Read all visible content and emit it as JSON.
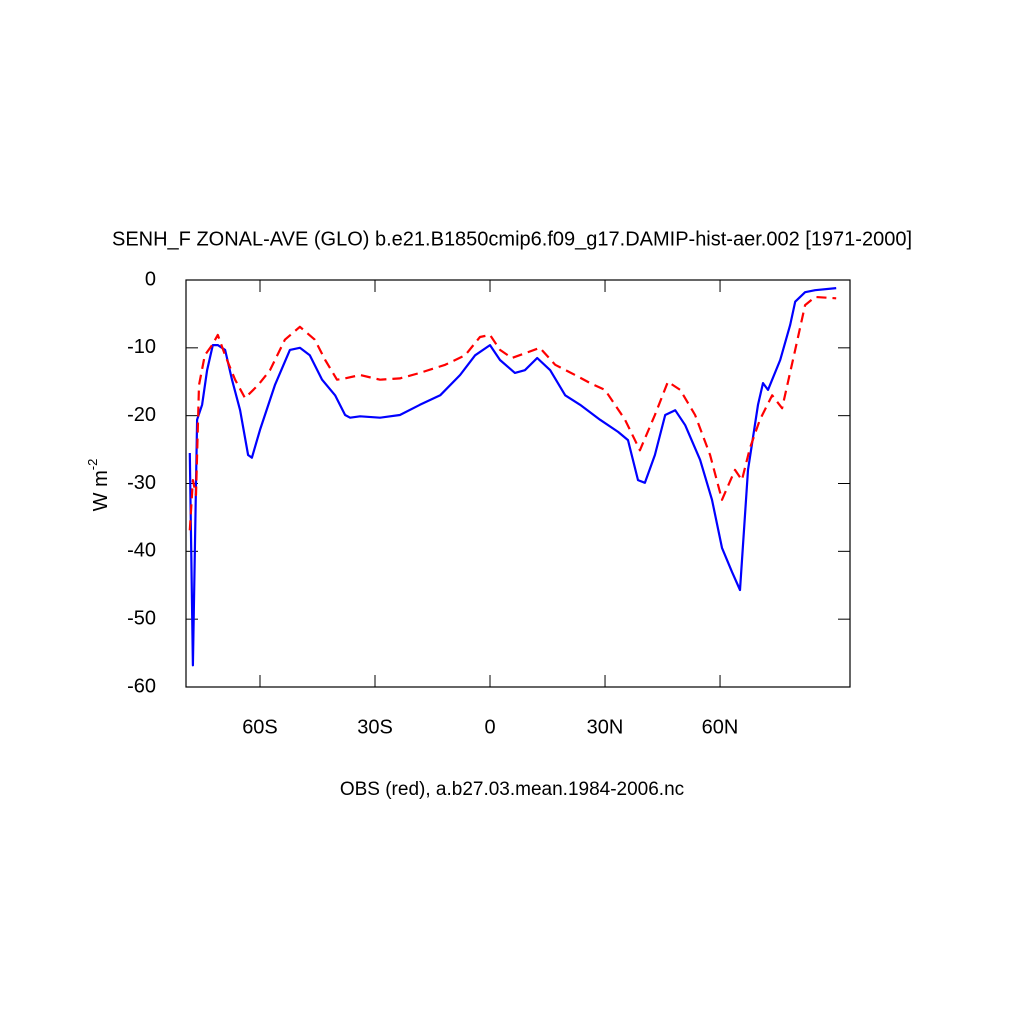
{
  "chart_data": {
    "type": "line",
    "title": "SENH_F ZONAL-AVE (GLO) b.e21.B1850cmip6.f09_g17.DAMIP-hist-aer.002 [1971-2000]",
    "ylabel": "W m",
    "ylabel_sup": "-2",
    "footer": "OBS (red), a.b27.03.mean.1984-2006.nc",
    "xlim": [
      -79.3,
      93.9
    ],
    "ylim": [
      -60,
      0
    ],
    "xticks": [
      {
        "value": -60,
        "label": "60S"
      },
      {
        "value": -30,
        "label": "30S"
      },
      0,
      {
        "value": 30,
        "label": "30N"
      },
      {
        "value": 60,
        "label": "60N"
      }
    ],
    "yticks": [
      0,
      -10,
      -20,
      -30,
      -40,
      -50,
      -60
    ],
    "series": [
      {
        "color": "#0000ff",
        "dash": "none",
        "x": [
          -78.3,
          -77.5,
          -76.4,
          -75.1,
          -73.8,
          -72.3,
          -71,
          -69.1,
          -67.3,
          -65.2,
          -63.1,
          -62.1,
          -60,
          -56.1,
          -52.2,
          -49.6,
          -47,
          -43.8,
          -40.4,
          -37.8,
          -36.5,
          -33.9,
          -28.7,
          -23.5,
          -18.3,
          -13,
          -7.8,
          -3.9,
          0,
          2.6,
          6.5,
          9.1,
          12.3,
          15.7,
          19.6,
          23.5,
          28.7,
          33.4,
          36,
          38.6,
          40.4,
          43,
          45.7,
          48.3,
          50.9,
          54.8,
          57.9,
          60.5,
          63.1,
          65.2,
          67.3,
          69.9,
          71.2,
          72.5,
          75.7,
          78.3,
          79.6,
          82.2,
          84.8,
          90.3
        ],
        "values": [
          -25.5,
          -56.8,
          -20.6,
          -18.4,
          -13.3,
          -9.6,
          -9.6,
          -10.3,
          -14.7,
          -19.2,
          -25.8,
          -26.2,
          -22.1,
          -15.5,
          -10.3,
          -10.0,
          -11.1,
          -14.7,
          -17.0,
          -19.9,
          -20.3,
          -20.1,
          -20.3,
          -19.9,
          -18.4,
          -17.0,
          -14.0,
          -11.1,
          -9.6,
          -11.8,
          -13.7,
          -13.3,
          -11.5,
          -13.3,
          -17.0,
          -18.4,
          -20.6,
          -22.4,
          -23.6,
          -29.5,
          -29.9,
          -25.8,
          -19.9,
          -19.2,
          -21.4,
          -26.5,
          -32.4,
          -39.5,
          -43.0,
          -45.7,
          -28.0,
          -18.4,
          -15.2,
          -16.2,
          -11.8,
          -6.6,
          -3.2,
          -1.8,
          -1.5,
          -1.2
        ]
      },
      {
        "color": "#ff0000",
        "dash": "dashed",
        "x": [
          -78.3,
          -77.5,
          -76.7,
          -75.9,
          -74.4,
          -72.5,
          -71,
          -69.1,
          -66.5,
          -63.9,
          -60.5,
          -57.4,
          -53.5,
          -49.6,
          -45.7,
          -43,
          -39.9,
          -37.8,
          -33.9,
          -28.7,
          -23.5,
          -18.3,
          -11.7,
          -6.5,
          -2.6,
          0,
          2.6,
          5.7,
          9.1,
          13,
          17,
          22.2,
          26.1,
          30,
          35.2,
          39.1,
          43,
          46.4,
          49.6,
          53.5,
          57.4,
          60.5,
          63.9,
          65.7,
          67.8,
          70.4,
          73.6,
          76.2,
          79.6,
          82.2,
          84.8,
          90.3
        ],
        "values": [
          -36.9,
          -29.5,
          -31.7,
          -15.5,
          -11.1,
          -9.6,
          -8.1,
          -11.1,
          -14.7,
          -17.4,
          -15.5,
          -13.3,
          -8.8,
          -6.9,
          -8.8,
          -11.8,
          -14.7,
          -14.5,
          -14.0,
          -14.7,
          -14.5,
          -13.7,
          -12.5,
          -11.1,
          -8.4,
          -8.1,
          -10.3,
          -11.5,
          -10.8,
          -10.0,
          -12.5,
          -14.0,
          -15.2,
          -16.2,
          -20.6,
          -25.1,
          -19.9,
          -15.0,
          -16.2,
          -19.9,
          -25.8,
          -32.4,
          -28.0,
          -29.5,
          -24.8,
          -20.6,
          -17.0,
          -18.9,
          -10.3,
          -3.7,
          -2.5,
          -2.7
        ]
      }
    ]
  }
}
